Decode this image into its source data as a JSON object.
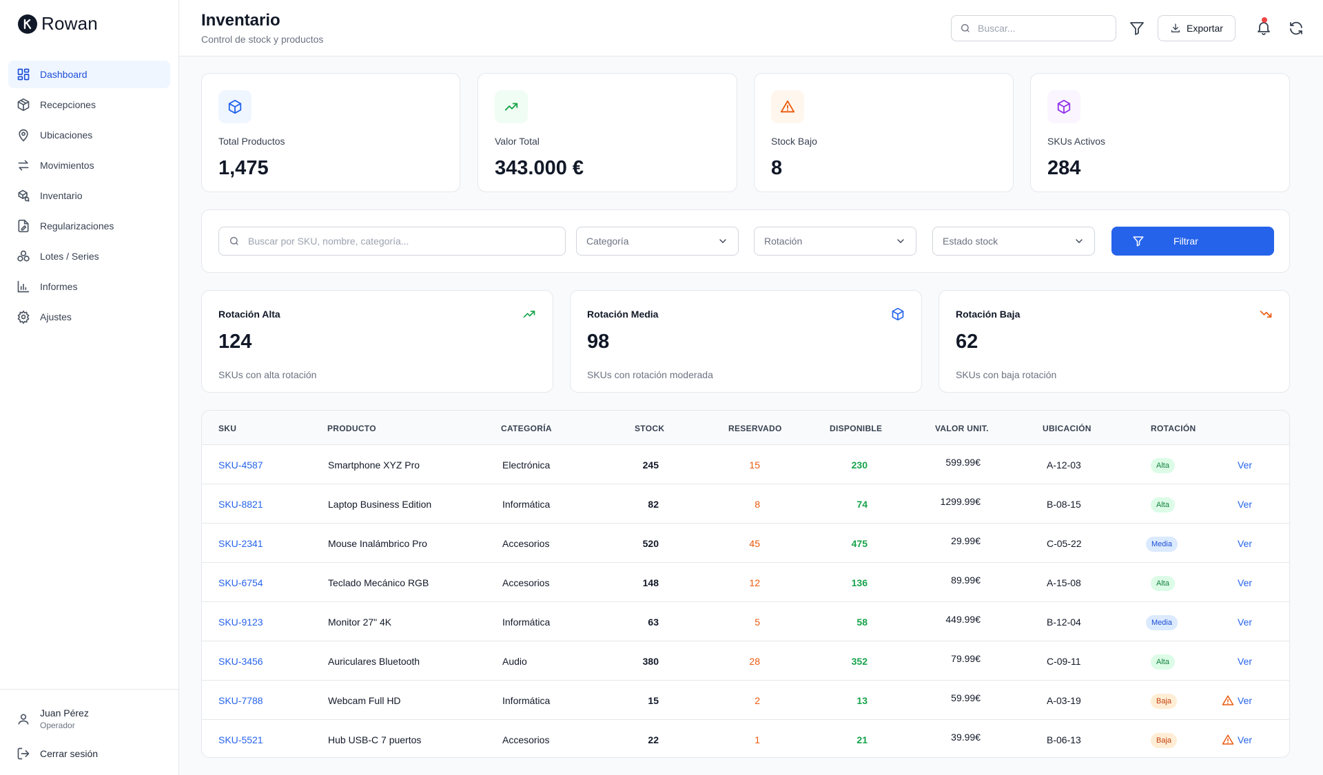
{
  "app": {
    "name": "Rowan"
  },
  "sidebar": {
    "items": [
      {
        "label": "Dashboard",
        "icon": "dashboard-icon",
        "active": true
      },
      {
        "label": "Recepciones",
        "icon": "package-icon"
      },
      {
        "label": "Ubicaciones",
        "icon": "map-pin-icon"
      },
      {
        "label": "Movimientos",
        "icon": "arrows-swap-icon"
      },
      {
        "label": "Inventario",
        "icon": "boxes-icon"
      },
      {
        "label": "Regularizaciones",
        "icon": "file-edit-icon"
      },
      {
        "label": "Lotes / Series",
        "icon": "layers-icon"
      },
      {
        "label": "Informes",
        "icon": "bar-chart-icon"
      },
      {
        "label": "Ajustes",
        "icon": "gear-icon"
      }
    ],
    "user": {
      "name": "Juan Pérez",
      "role": "Operador"
    },
    "logout_label": "Cerrar sesión"
  },
  "header": {
    "title": "Inventario",
    "subtitle": "Control de stock y productos",
    "search_placeholder": "Buscar...",
    "export_label": "Exportar"
  },
  "stats": [
    {
      "label": "Total Productos",
      "value": "1,475",
      "icon": "cube-icon",
      "color": "#2563eb",
      "bg": "#eff6ff"
    },
    {
      "label": "Valor Total",
      "value": "343.000 €",
      "icon": "trending-up-icon",
      "color": "#16a34a",
      "bg": "#f0fdf4"
    },
    {
      "label": "Stock Bajo",
      "value": "8",
      "icon": "alert-triangle-icon",
      "color": "#ea580c",
      "bg": "#fff7ed"
    },
    {
      "label": "SKUs Activos",
      "value": "284",
      "icon": "cube-icon",
      "color": "#9333ea",
      "bg": "#faf5ff"
    }
  ],
  "filters": {
    "search_placeholder": "Buscar por SKU, nombre, categoría...",
    "category_label": "Categoría",
    "rotation_label": "Rotación",
    "stock_status_label": "Estado stock",
    "filter_button": "Filtrar"
  },
  "rotation_cards": [
    {
      "title": "Rotación Alta",
      "value": "124",
      "desc": "SKUs con alta rotación",
      "icon": "trending-up-icon",
      "color": "#16a34a"
    },
    {
      "title": "Rotación Media",
      "value": "98",
      "desc": "SKUs con rotación moderada",
      "icon": "cube-icon",
      "color": "#2563eb"
    },
    {
      "title": "Rotación Baja",
      "value": "62",
      "desc": "SKUs con baja rotación",
      "icon": "trending-down-icon",
      "color": "#ea580c"
    }
  ],
  "table": {
    "columns": [
      "SKU",
      "PRODUCTO",
      "CATEGORÍA",
      "STOCK",
      "RESERVADO",
      "DISPONIBLE",
      "VALOR UNIT.",
      "UBICACIÓN",
      "ROTACIÓN"
    ],
    "action_label": "Ver",
    "rows": [
      {
        "sku": "SKU-4587",
        "product": "Smartphone XYZ Pro",
        "category": "Electrónica",
        "stock": "245",
        "reserved": "15",
        "available": "230",
        "unit_value": "599.99€",
        "location": "A-12-03",
        "rotation": "Alta",
        "warning": false
      },
      {
        "sku": "SKU-8821",
        "product": "Laptop Business Edition",
        "category": "Informática",
        "stock": "82",
        "reserved": "8",
        "available": "74",
        "unit_value": "1299.99€",
        "location": "B-08-15",
        "rotation": "Alta",
        "warning": false
      },
      {
        "sku": "SKU-2341",
        "product": "Mouse Inalámbrico Pro",
        "category": "Accesorios",
        "stock": "520",
        "reserved": "45",
        "available": "475",
        "unit_value": "29.99€",
        "location": "C-05-22",
        "rotation": "Media",
        "warning": false
      },
      {
        "sku": "SKU-6754",
        "product": "Teclado Mecánico RGB",
        "category": "Accesorios",
        "stock": "148",
        "reserved": "12",
        "available": "136",
        "unit_value": "89.99€",
        "location": "A-15-08",
        "rotation": "Alta",
        "warning": false
      },
      {
        "sku": "SKU-9123",
        "product": "Monitor 27\" 4K",
        "category": "Informática",
        "stock": "63",
        "reserved": "5",
        "available": "58",
        "unit_value": "449.99€",
        "location": "B-12-04",
        "rotation": "Media",
        "warning": false
      },
      {
        "sku": "SKU-3456",
        "product": "Auriculares Bluetooth",
        "category": "Audio",
        "stock": "380",
        "reserved": "28",
        "available": "352",
        "unit_value": "79.99€",
        "location": "C-09-11",
        "rotation": "Alta",
        "warning": false
      },
      {
        "sku": "SKU-7788",
        "product": "Webcam Full HD",
        "category": "Informática",
        "stock": "15",
        "reserved": "2",
        "available": "13",
        "unit_value": "59.99€",
        "location": "A-03-19",
        "rotation": "Baja",
        "warning": true
      },
      {
        "sku": "SKU-5521",
        "product": "Hub USB-C 7 puertos",
        "category": "Accesorios",
        "stock": "22",
        "reserved": "1",
        "available": "21",
        "unit_value": "39.99€",
        "location": "B-06-13",
        "rotation": "Baja",
        "warning": true
      }
    ]
  }
}
